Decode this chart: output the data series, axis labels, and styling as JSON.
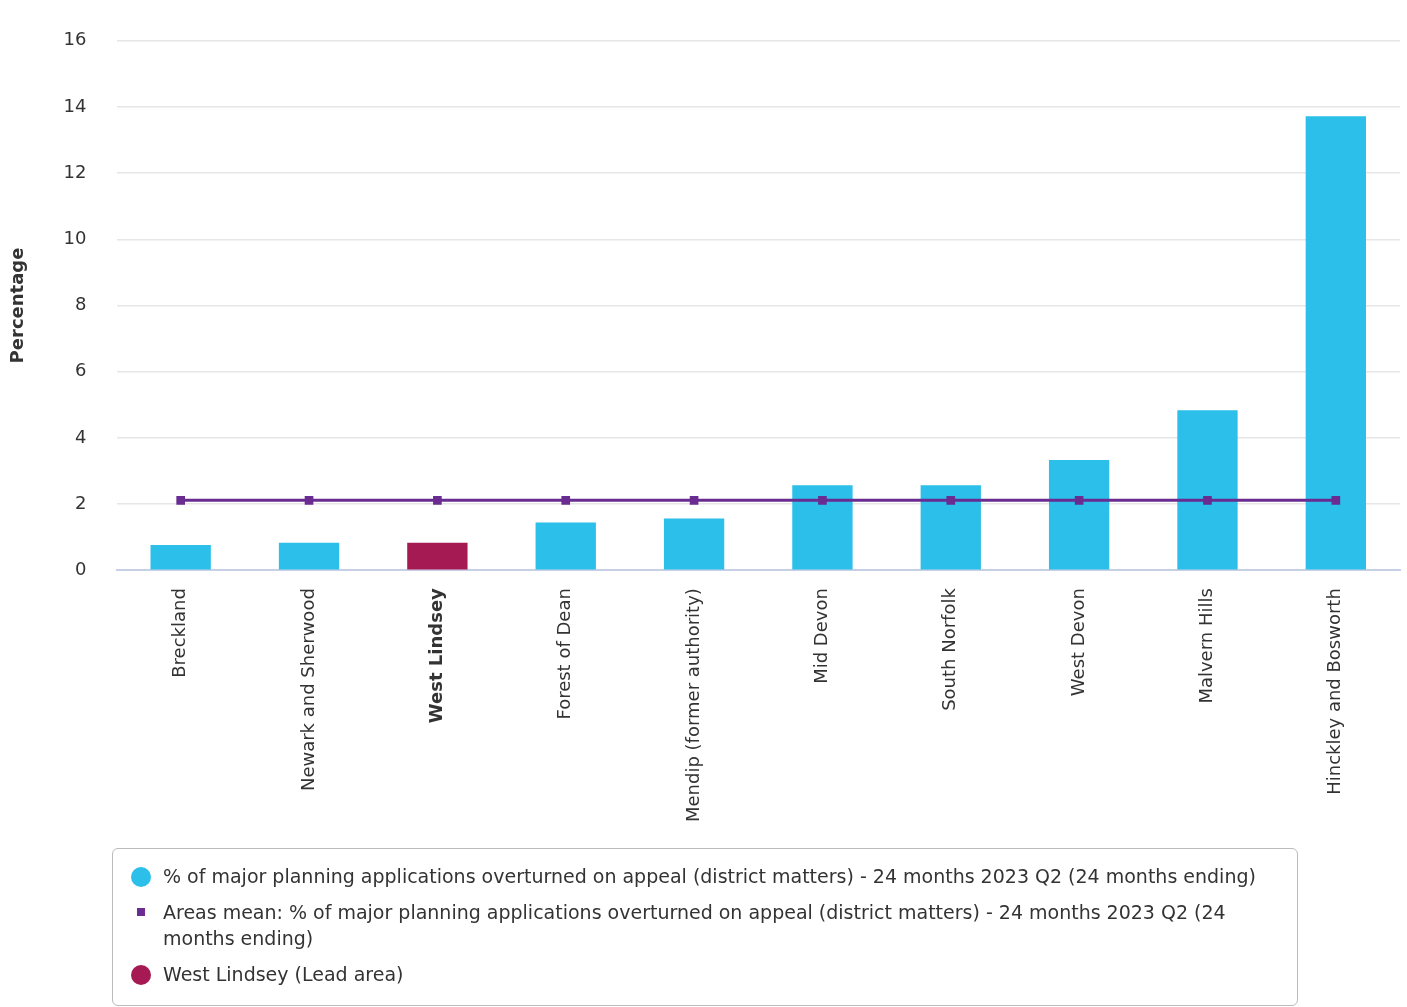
{
  "chart_data": {
    "type": "bar",
    "ylabel": "Percentage",
    "categories": [
      "Breckland",
      "Newark and Sherwood",
      "West Lindsey",
      "Forest of Dean",
      "Mendip (former authority)",
      "Mid Devon",
      "South Norfolk",
      "West Devon",
      "Malvern Hills",
      "Hinckley and Bosworth"
    ],
    "series": [
      {
        "name": "% of major planning applications overturned on appeal (district matters) - 24 months 2023 Q2 (24 months ending)",
        "color": "#2bbfe9",
        "values": [
          0.76,
          0.83,
          null,
          1.44,
          1.56,
          2.57,
          2.57,
          3.33,
          4.83,
          13.72
        ]
      },
      {
        "name": "Areas mean: % of major planning applications overturned on appeal (district matters) - 24 months 2023 Q2 (24 months ending)",
        "type": "line",
        "color": "#6a2c91",
        "marker": "square",
        "values": [
          2.11,
          2.11,
          2.11,
          2.11,
          2.11,
          2.11,
          2.11,
          2.11,
          2.11,
          2.11
        ]
      },
      {
        "name": "West Lindsey (Lead area)",
        "color": "#a51a53",
        "values": [
          null,
          null,
          0.83,
          null,
          null,
          null,
          null,
          null,
          null,
          null
        ]
      }
    ],
    "ylim": [
      0,
      16
    ],
    "yticks": [
      0,
      2,
      4,
      6,
      8,
      10,
      12,
      14,
      16
    ],
    "grid": "y",
    "legend": "bottom"
  }
}
